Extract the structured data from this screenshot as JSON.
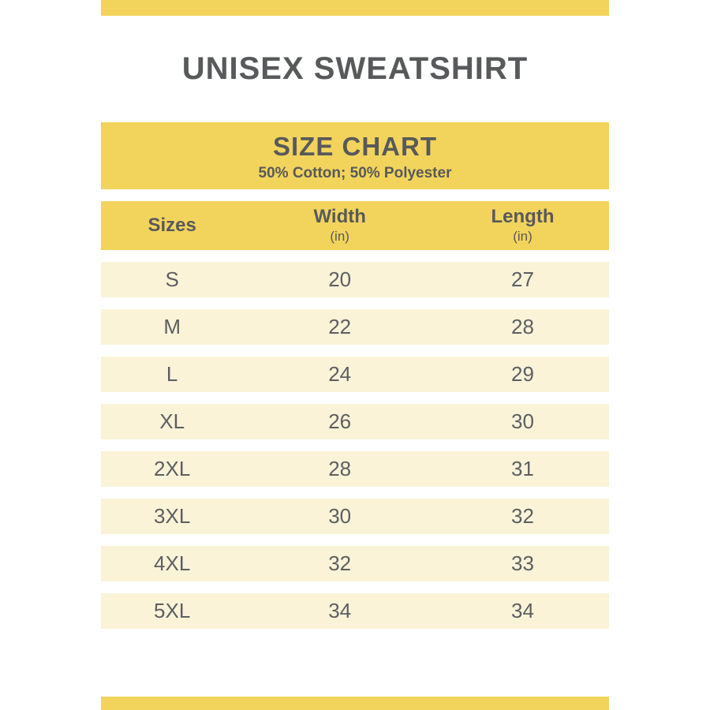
{
  "page": {
    "title": "UNISEX SWEATSHIRT"
  },
  "banner": {
    "title": "SIZE CHART",
    "subtitle": "50% Cotton; 50% Polyester"
  },
  "table": {
    "headers": {
      "sizes": "Sizes",
      "width": "Width",
      "length": "Length",
      "unit": "(in)"
    },
    "rows": [
      {
        "size": "S",
        "width": "20",
        "length": "27"
      },
      {
        "size": "M",
        "width": "22",
        "length": "28"
      },
      {
        "size": "L",
        "width": "24",
        "length": "29"
      },
      {
        "size": "XL",
        "width": "26",
        "length": "30"
      },
      {
        "size": "2XL",
        "width": "28",
        "length": "31"
      },
      {
        "size": "3XL",
        "width": "30",
        "length": "32"
      },
      {
        "size": "4XL",
        "width": "32",
        "length": "33"
      },
      {
        "size": "5XL",
        "width": "34",
        "length": "34"
      }
    ]
  },
  "colors": {
    "accent_yellow": "#F2D45C",
    "row_cream": "#FAF3D8",
    "text_dark": "#58595B"
  },
  "chart_data": {
    "type": "table",
    "title": "SIZE CHART",
    "subtitle": "50% Cotton; 50% Polyester",
    "columns": [
      "Sizes",
      "Width (in)",
      "Length (in)"
    ],
    "rows": [
      [
        "S",
        20,
        27
      ],
      [
        "M",
        22,
        28
      ],
      [
        "L",
        24,
        29
      ],
      [
        "XL",
        26,
        30
      ],
      [
        "2XL",
        28,
        31
      ],
      [
        "3XL",
        30,
        32
      ],
      [
        "4XL",
        32,
        33
      ],
      [
        "5XL",
        34,
        34
      ]
    ]
  }
}
